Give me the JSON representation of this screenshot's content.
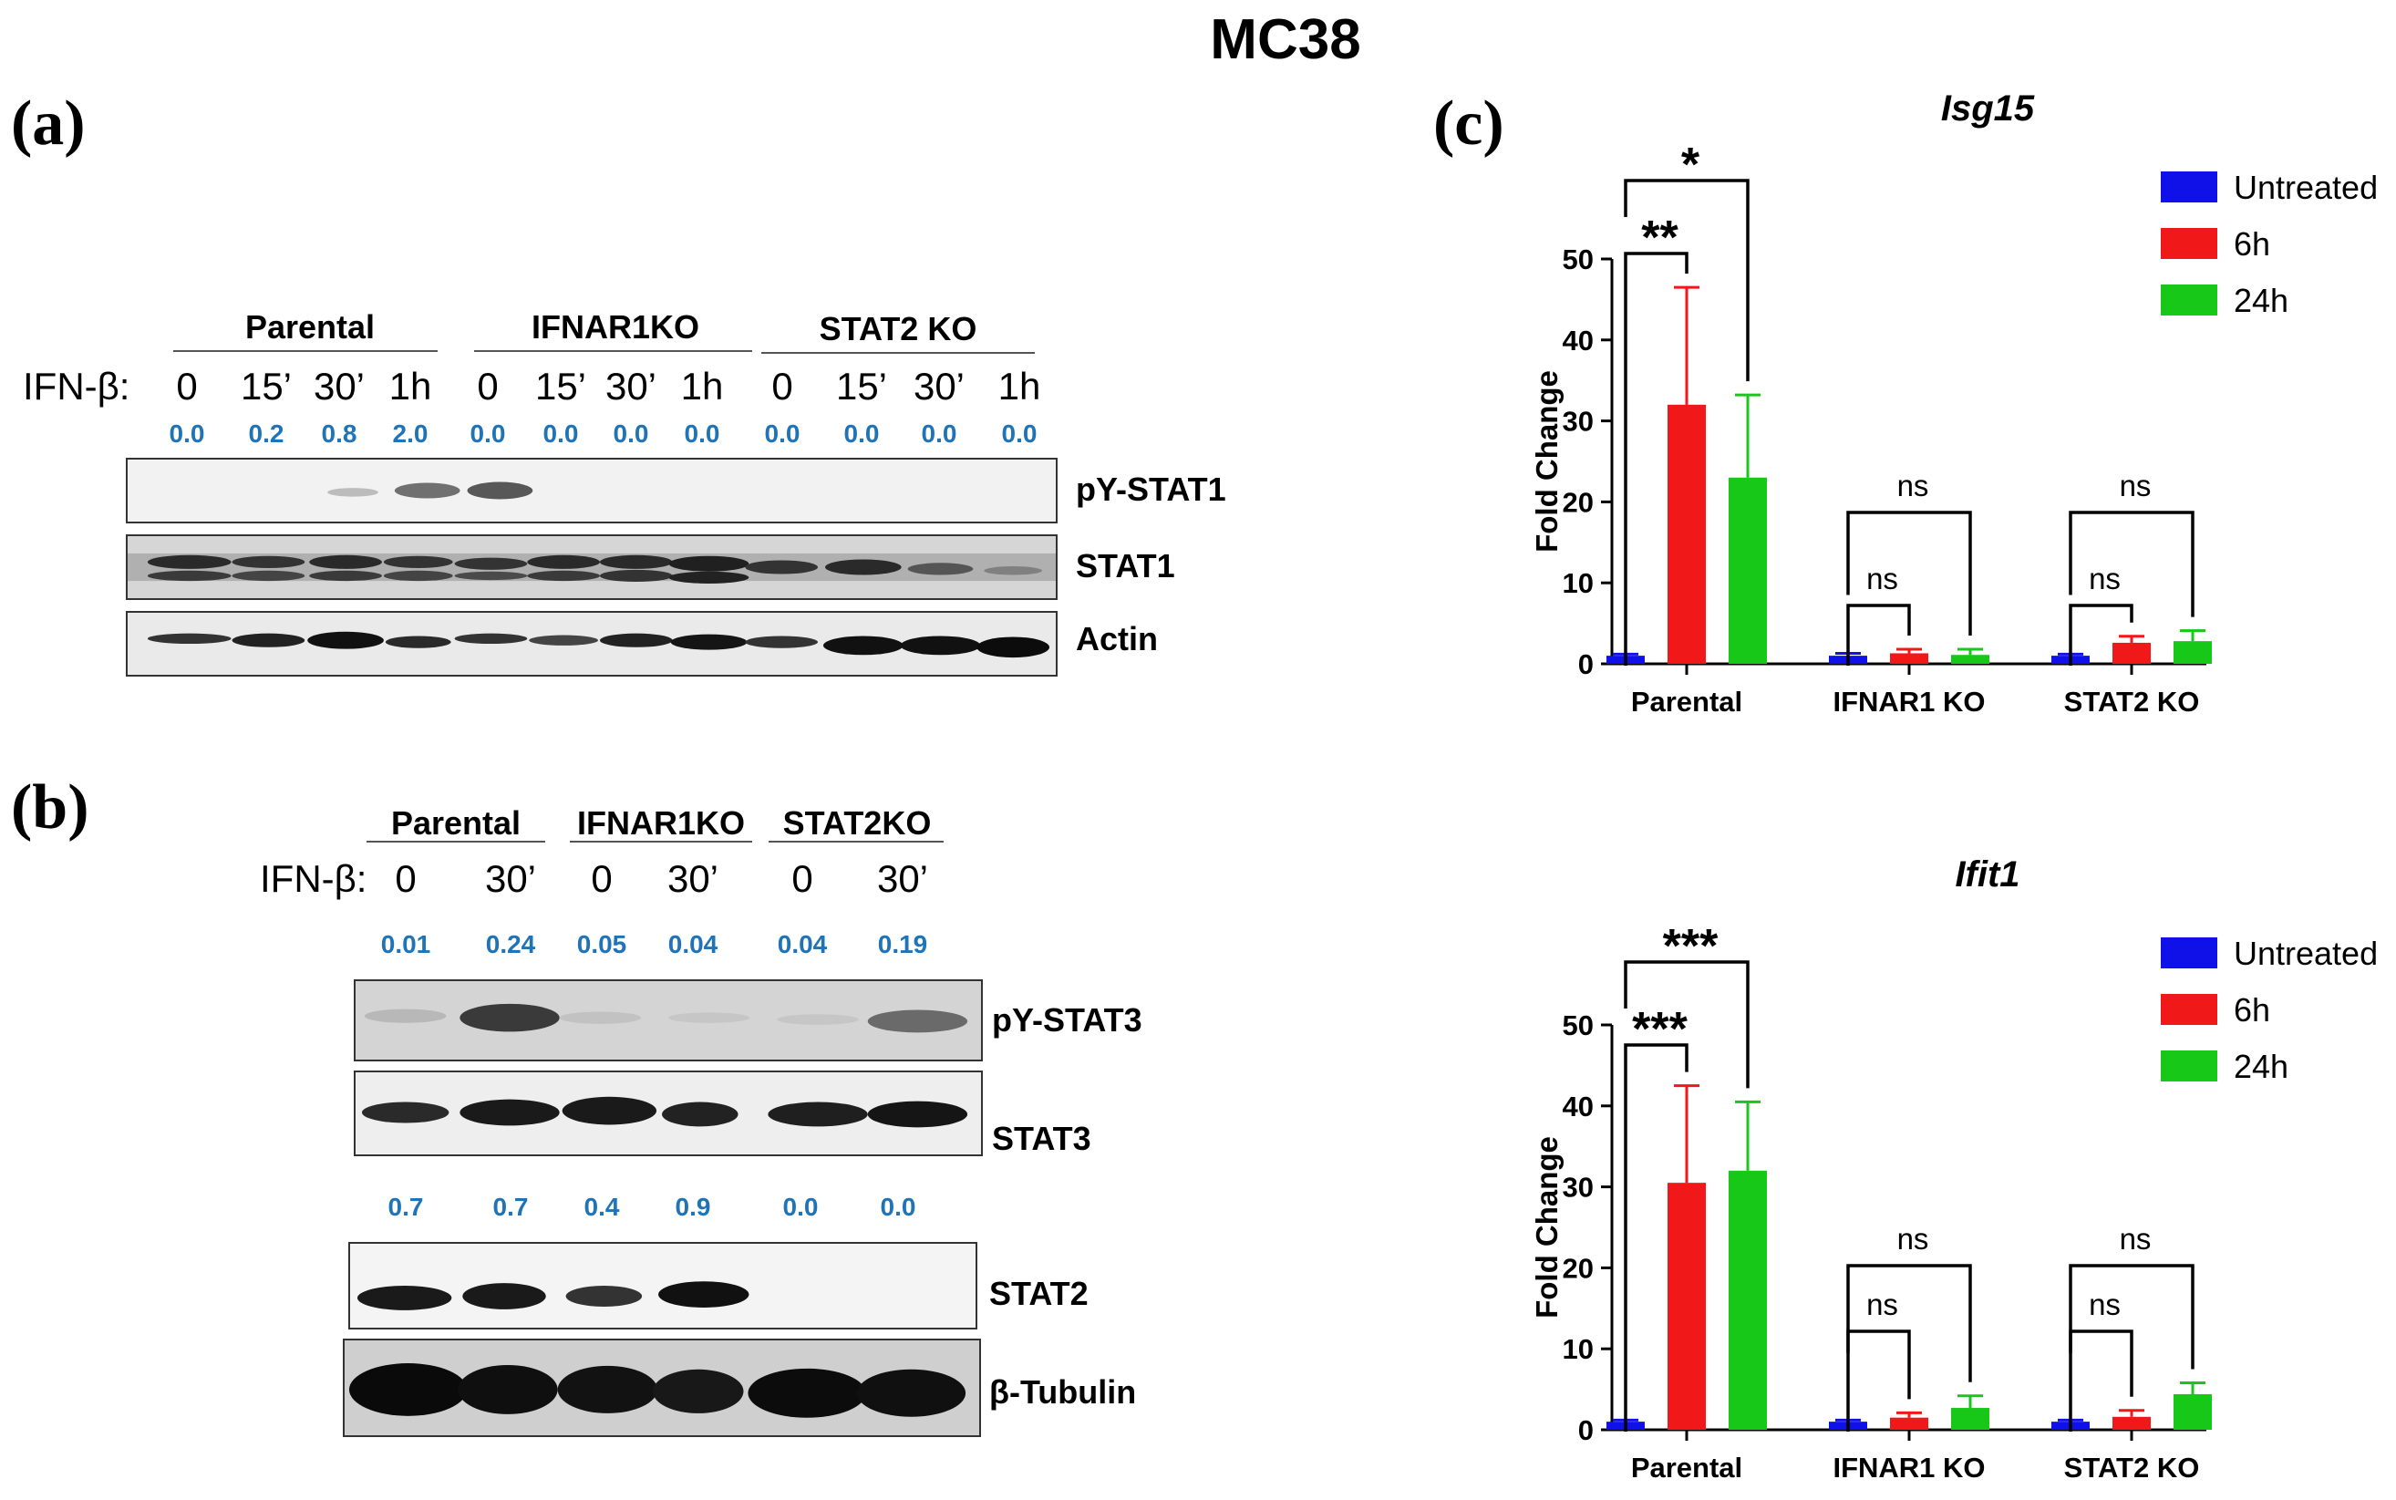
{
  "figure_title": "MC38",
  "panel_a": {
    "label": "(a)",
    "ifn_label": "IFN-β:",
    "groups": [
      "Parental",
      "IFNAR1KO",
      "STAT2 KO"
    ],
    "times": [
      "0",
      "15’",
      "30’",
      "1h",
      "0",
      "15’",
      "30’",
      "1h",
      "0",
      "15’",
      "30’",
      "1h"
    ],
    "quant": [
      "0.0",
      "0.2",
      "0.8",
      "2.0",
      "0.0",
      "0.0",
      "0.0",
      "0.0",
      "0.0",
      "0.0",
      "0.0",
      "0.0"
    ],
    "blots": [
      "pY-STAT1",
      "STAT1",
      "Actin"
    ]
  },
  "panel_b": {
    "label": "(b)",
    "ifn_label": "IFN-β:",
    "groups": [
      "Parental",
      "IFNAR1KO",
      "STAT2KO"
    ],
    "times": [
      "0",
      "30’",
      "0",
      "30’",
      "0",
      "30’"
    ],
    "quant_top": [
      "0.01",
      "0.24",
      "0.05",
      "0.04",
      "0.04",
      "0.19"
    ],
    "quant_mid": [
      "0.7",
      "0.7",
      "0.4",
      "0.9",
      "0.0",
      "0.0"
    ],
    "blots": [
      "pY-STAT3",
      "STAT3",
      "STAT2",
      "β-Tubulin"
    ]
  },
  "panel_c": {
    "label": "(c)"
  },
  "colors": {
    "untreated": "#1010e8",
    "h6": "#f01818",
    "h24": "#18c818",
    "quant": "#1f74b8"
  },
  "chart_data": [
    {
      "type": "bar",
      "title": "Isg15",
      "ylabel": "Fold Change",
      "ylim": [
        0,
        50
      ],
      "yticks": [
        "0",
        "10",
        "20",
        "30",
        "40",
        "50"
      ],
      "categories": [
        "Parental",
        "IFNAR1 KO",
        "STAT2 KO"
      ],
      "series": [
        {
          "name": "Untreated",
          "values": [
            1.0,
            1.0,
            1.0
          ],
          "errors": [
            0.2,
            0.3,
            0.2
          ]
        },
        {
          "name": "6h",
          "values": [
            32,
            1.3,
            2.6
          ],
          "errors": [
            14.5,
            0.5,
            0.8
          ]
        },
        {
          "name": "24h",
          "values": [
            23,
            1.1,
            2.8
          ],
          "errors": [
            10.2,
            0.7,
            1.3
          ]
        }
      ],
      "significance": {
        "parental_6h": "**",
        "parental_24h": "*",
        "ifnar_6h": "ns",
        "ifnar_24h": "ns",
        "stat2_6h": "ns",
        "stat2_24h": "ns"
      },
      "legend": "top-right"
    },
    {
      "type": "bar",
      "title": "Ifit1",
      "ylabel": "Fold Change",
      "ylim": [
        0,
        50
      ],
      "yticks": [
        "0",
        "10",
        "20",
        "30",
        "40",
        "50"
      ],
      "categories": [
        "Parental",
        "IFNAR1 KO",
        "STAT2 KO"
      ],
      "series": [
        {
          "name": "Untreated",
          "values": [
            1.0,
            1.0,
            1.0
          ],
          "errors": [
            0.2,
            0.2,
            0.2
          ]
        },
        {
          "name": "6h",
          "values": [
            30.5,
            1.5,
            1.6
          ],
          "errors": [
            12.0,
            0.6,
            0.8
          ]
        },
        {
          "name": "24h",
          "values": [
            32,
            2.7,
            4.4
          ],
          "errors": [
            8.5,
            1.5,
            1.4
          ]
        }
      ],
      "significance": {
        "parental_6h": "***",
        "parental_24h": "***",
        "ifnar_6h": "ns",
        "ifnar_24h": "ns",
        "stat2_6h": "ns",
        "stat2_24h": "ns"
      },
      "legend": "top-right"
    }
  ]
}
